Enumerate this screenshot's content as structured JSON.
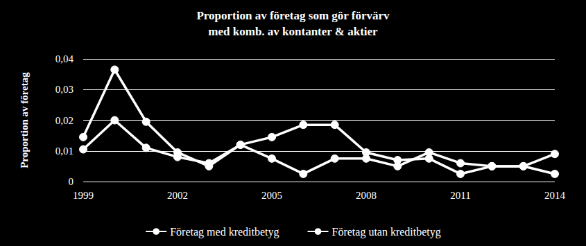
{
  "chart_data": {
    "type": "line",
    "title": "Proportion av företag som gör förvärv\nmed komb. av kontanter & aktier",
    "y_label": "Proportion av företag",
    "x": [
      1999,
      2000,
      2001,
      2002,
      2003,
      2004,
      2005,
      2006,
      2007,
      2008,
      2009,
      2010,
      2011,
      2012,
      2013,
      2014
    ],
    "xlim": [
      1999,
      2014
    ],
    "xticks": [
      1999,
      2002,
      2005,
      2008,
      2011,
      2014
    ],
    "ylim": [
      0,
      0.04
    ],
    "yticks": [
      0,
      {
        "value": 0.01,
        "label": "0,01"
      },
      {
        "value": 0.02,
        "label": "0,02"
      },
      {
        "value": 0.03,
        "label": "0,03"
      },
      {
        "value": 0.04,
        "label": "0,04"
      }
    ],
    "grid": true,
    "legend": "bottom",
    "marker": "circle",
    "series": [
      {
        "name": "Företag med kreditbetyg",
        "color": "#ffffff",
        "values": [
          0.0145,
          0.0365,
          0.0195,
          0.0095,
          0.005,
          0.012,
          0.0145,
          0.0185,
          0.0185,
          0.0095,
          0.007,
          0.0075,
          0.0025,
          0.005,
          0.005,
          0.009
        ]
      },
      {
        "name": "Företag utan kreditbetyg",
        "color": "#ffffff",
        "values": [
          0.0105,
          0.02,
          0.011,
          0.008,
          0.006,
          0.012,
          0.0075,
          0.0025,
          0.0075,
          0.0075,
          0.005,
          0.0095,
          0.006,
          0.005,
          0.005,
          0.0025
        ]
      }
    ]
  }
}
